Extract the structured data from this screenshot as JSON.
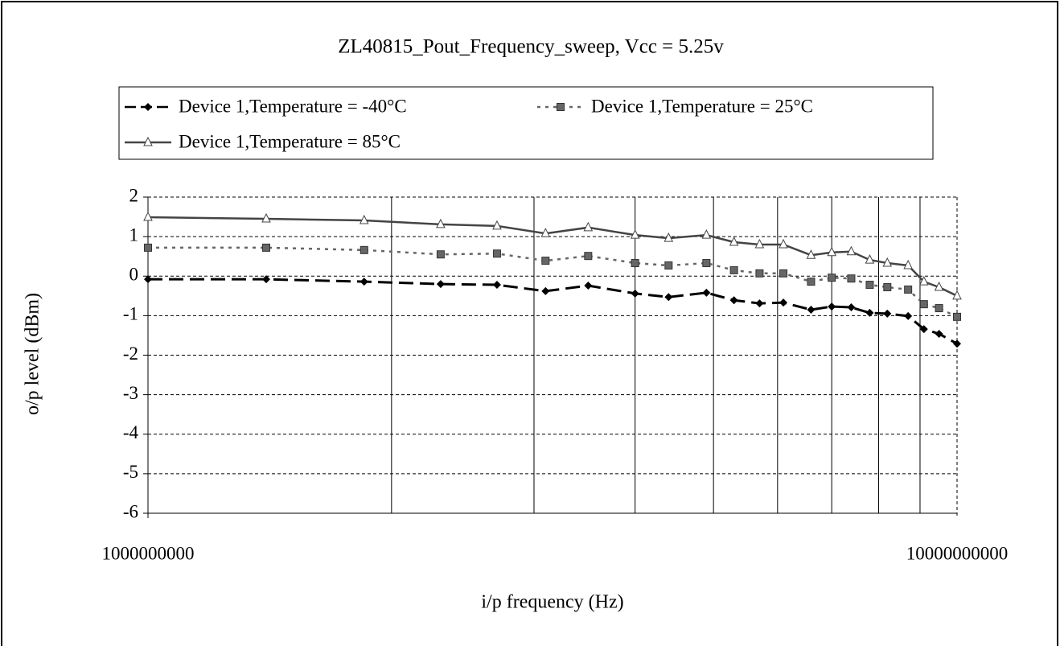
{
  "chart_data": {
    "type": "line",
    "title": "ZL40815_Pout_Frequency_sweep, Vcc = 5.25v",
    "x_label": "i/p frequency (Hz)",
    "y_label": "o/p level (dBm)",
    "x_scale": "log",
    "x": [
      1000000000.0,
      1400000000.0,
      1850000000.0,
      2300000000.0,
      2700000000.0,
      3100000000.0,
      3500000000.0,
      4000000000.0,
      4400000000.0,
      4900000000.0,
      5300000000.0,
      5700000000.0,
      6100000000.0,
      6600000000.0,
      7000000000.0,
      7400000000.0,
      7800000000.0,
      8200000000.0,
      8700000000.0,
      9100000000.0,
      9500000000.0,
      10000000000.0
    ],
    "series": [
      {
        "name": "Device 1,Temperature = -40°C",
        "color": "#000000",
        "style": "dashed",
        "marker": "diamond",
        "values": [
          -0.08,
          -0.08,
          -0.14,
          -0.2,
          -0.22,
          -0.38,
          -0.24,
          -0.44,
          -0.53,
          -0.42,
          -0.61,
          -0.69,
          -0.67,
          -0.85,
          -0.77,
          -0.79,
          -0.93,
          -0.95,
          -1.01,
          -1.34,
          -1.46,
          -1.71
        ]
      },
      {
        "name": "Device 1,Temperature = 25°C",
        "color": "#666666",
        "style": "dotted",
        "marker": "square",
        "values": [
          0.72,
          0.72,
          0.66,
          0.55,
          0.57,
          0.39,
          0.51,
          0.33,
          0.27,
          0.33,
          0.15,
          0.07,
          0.07,
          -0.14,
          -0.04,
          -0.06,
          -0.22,
          -0.28,
          -0.34,
          -0.71,
          -0.81,
          -1.03
        ]
      },
      {
        "name": "Device 1,Temperature = 85°C",
        "color": "#444444",
        "style": "solid",
        "marker": "triangle",
        "values": [
          1.49,
          1.45,
          1.41,
          1.31,
          1.27,
          1.08,
          1.23,
          1.04,
          0.96,
          1.04,
          0.86,
          0.8,
          0.8,
          0.53,
          0.6,
          0.62,
          0.41,
          0.33,
          0.27,
          -0.14,
          -0.28,
          -0.5
        ]
      }
    ],
    "xlim": [
      1000000000,
      10000000000
    ],
    "xticks": [
      1000000000,
      10000000000
    ],
    "xminor_ticks": [
      2000000000,
      3000000000,
      4000000000,
      5000000000,
      6000000000,
      7000000000,
      8000000000,
      9000000000
    ],
    "ylim": [
      -6,
      2
    ],
    "yticks": [
      2,
      1,
      0,
      -1,
      -2,
      -3,
      -4,
      -5,
      -6
    ],
    "grid": true,
    "legend": "top"
  }
}
